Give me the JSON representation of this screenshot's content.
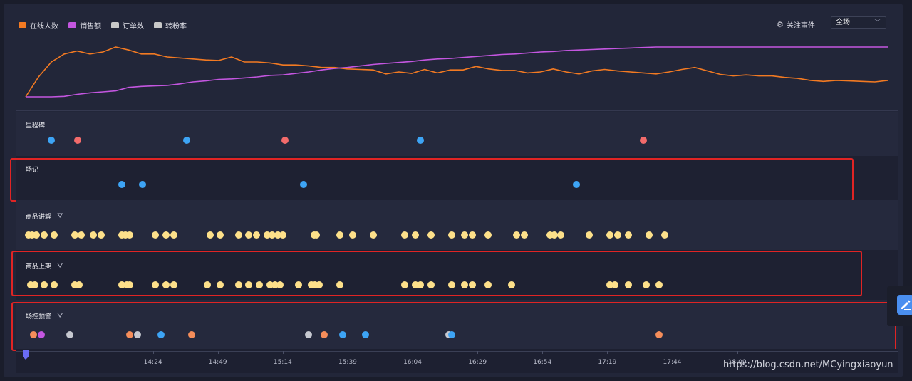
{
  "legend": [
    {
      "label": "在线人数",
      "color": "#f37a22"
    },
    {
      "label": "销售额",
      "color": "#c456e0"
    },
    {
      "label": "订单数",
      "color": "#c9c9c9"
    },
    {
      "label": "转粉率",
      "color": "#c9c9c9"
    }
  ],
  "toolbar": {
    "watch_events_label": "关注事件",
    "scope_value": "全场",
    "gear_icon": "gear-icon",
    "chevron_icon": "chevron-down-icon"
  },
  "colors": {
    "online": "#f37a22",
    "sales": "#c456e0",
    "blue": "#3da4f5",
    "red": "#f36b6b",
    "yellow": "#fde08a",
    "orange": "#f58d5a",
    "purple": "#c456e0",
    "gray": "#c6c8d0",
    "highlight": "#e02424"
  },
  "chart_data": {
    "type": "line",
    "series": [
      {
        "name": "在线人数",
        "color": "#f37a22",
        "values": [
          0.0,
          0.4,
          0.7,
          0.86,
          0.92,
          0.86,
          0.9,
          1.0,
          0.94,
          0.86,
          0.86,
          0.8,
          0.78,
          0.76,
          0.74,
          0.73,
          0.8,
          0.7,
          0.7,
          0.68,
          0.64,
          0.64,
          0.62,
          0.59,
          0.59,
          0.56,
          0.55,
          0.54,
          0.46,
          0.5,
          0.47,
          0.55,
          0.48,
          0.54,
          0.54,
          0.61,
          0.56,
          0.53,
          0.53,
          0.48,
          0.5,
          0.56,
          0.5,
          0.46,
          0.52,
          0.55,
          0.52,
          0.5,
          0.48,
          0.46,
          0.5,
          0.55,
          0.59,
          0.52,
          0.45,
          0.42,
          0.44,
          0.42,
          0.42,
          0.39,
          0.37,
          0.33,
          0.31,
          0.33,
          0.32,
          0.31,
          0.3,
          0.33
        ]
      },
      {
        "name": "销售额",
        "color": "#c456e0",
        "values": [
          0.0,
          0.0,
          0.0,
          0.01,
          0.05,
          0.08,
          0.1,
          0.12,
          0.19,
          0.21,
          0.22,
          0.23,
          0.26,
          0.3,
          0.32,
          0.35,
          0.36,
          0.38,
          0.4,
          0.43,
          0.44,
          0.47,
          0.5,
          0.54,
          0.57,
          0.59,
          0.62,
          0.65,
          0.67,
          0.69,
          0.71,
          0.74,
          0.76,
          0.77,
          0.79,
          0.81,
          0.83,
          0.85,
          0.86,
          0.88,
          0.9,
          0.91,
          0.93,
          0.94,
          0.95,
          0.96,
          0.97,
          0.98,
          0.99,
          1.0,
          1.0,
          1.0,
          1.0,
          1.0,
          1.0,
          1.0,
          1.0,
          1.0,
          1.0,
          1.0,
          1.0,
          1.0,
          1.0,
          1.0,
          1.0,
          1.0,
          1.0,
          1.0
        ]
      }
    ],
    "ylim": [
      0,
      1
    ]
  },
  "timeline": {
    "start_minutes": 815,
    "end_minutes": 1147,
    "ticks": [
      {
        "label": "14:24",
        "minutes": 864
      },
      {
        "label": "14:49",
        "minutes": 889
      },
      {
        "label": "15:14",
        "minutes": 914
      },
      {
        "label": "15:39",
        "minutes": 939
      },
      {
        "label": "16:04",
        "minutes": 964
      },
      {
        "label": "16:29",
        "minutes": 989
      },
      {
        "label": "16:54",
        "minutes": 1014
      },
      {
        "label": "17:19",
        "minutes": 1039
      },
      {
        "label": "17:44",
        "minutes": 1064
      },
      {
        "label": "18:09",
        "minutes": 1089
      }
    ]
  },
  "tracks": [
    {
      "title": "里程碑",
      "filterable": false,
      "highlighted": false,
      "events": [
        [
          825,
          "blue"
        ],
        [
          835,
          "red"
        ],
        [
          877,
          "blue"
        ],
        [
          915,
          "red"
        ],
        [
          967,
          "blue"
        ],
        [
          1053,
          "red"
        ]
      ]
    },
    {
      "title": "场记",
      "filterable": false,
      "highlighted": true,
      "events": [
        [
          852,
          "blue"
        ],
        [
          860,
          "blue"
        ],
        [
          922,
          "blue"
        ],
        [
          1027,
          "blue"
        ]
      ]
    },
    {
      "title": "商品讲解",
      "filterable": true,
      "highlighted": false,
      "events": [
        [
          816,
          "yellow"
        ],
        [
          817.5,
          "yellow"
        ],
        [
          819,
          "yellow"
        ],
        [
          822,
          "yellow"
        ],
        [
          826,
          "yellow"
        ],
        [
          834,
          "yellow"
        ],
        [
          836.5,
          "yellow"
        ],
        [
          841,
          "yellow"
        ],
        [
          844,
          "yellow"
        ],
        [
          852,
          "yellow"
        ],
        [
          853.5,
          "yellow"
        ],
        [
          855,
          "yellow"
        ],
        [
          865,
          "yellow"
        ],
        [
          869,
          "yellow"
        ],
        [
          872,
          "yellow"
        ],
        [
          886,
          "yellow"
        ],
        [
          890,
          "yellow"
        ],
        [
          897,
          "yellow"
        ],
        [
          901,
          "yellow"
        ],
        [
          904,
          "yellow"
        ],
        [
          908,
          "yellow"
        ],
        [
          910,
          "yellow"
        ],
        [
          912,
          "yellow"
        ],
        [
          914,
          "yellow"
        ],
        [
          926,
          "yellow"
        ],
        [
          927,
          "yellow"
        ],
        [
          936,
          "yellow"
        ],
        [
          941,
          "yellow"
        ],
        [
          949,
          "yellow"
        ],
        [
          961,
          "yellow"
        ],
        [
          965,
          "yellow"
        ],
        [
          971,
          "yellow"
        ],
        [
          979,
          "yellow"
        ],
        [
          984,
          "yellow"
        ],
        [
          987,
          "yellow"
        ],
        [
          993,
          "yellow"
        ],
        [
          1004,
          "yellow"
        ],
        [
          1007,
          "yellow"
        ],
        [
          1017,
          "yellow"
        ],
        [
          1018.5,
          "yellow"
        ],
        [
          1021,
          "yellow"
        ],
        [
          1032,
          "yellow"
        ],
        [
          1040,
          "yellow"
        ],
        [
          1043,
          "yellow"
        ],
        [
          1047,
          "yellow"
        ],
        [
          1055,
          "yellow"
        ],
        [
          1061,
          "yellow"
        ]
      ]
    },
    {
      "title": "商品上架",
      "filterable": true,
      "highlighted": true,
      "events": [
        [
          817,
          "yellow"
        ],
        [
          818.5,
          "yellow"
        ],
        [
          822,
          "yellow"
        ],
        [
          826,
          "yellow"
        ],
        [
          834,
          "yellow"
        ],
        [
          835.5,
          "yellow"
        ],
        [
          852,
          "yellow"
        ],
        [
          854,
          "yellow"
        ],
        [
          855,
          "yellow"
        ],
        [
          865,
          "yellow"
        ],
        [
          869,
          "yellow"
        ],
        [
          872,
          "yellow"
        ],
        [
          885,
          "yellow"
        ],
        [
          890,
          "yellow"
        ],
        [
          897,
          "yellow"
        ],
        [
          901,
          "yellow"
        ],
        [
          905,
          "yellow"
        ],
        [
          909,
          "yellow"
        ],
        [
          911,
          "yellow"
        ],
        [
          913,
          "yellow"
        ],
        [
          920,
          "yellow"
        ],
        [
          925,
          "yellow"
        ],
        [
          926.5,
          "yellow"
        ],
        [
          928,
          "yellow"
        ],
        [
          936,
          "yellow"
        ],
        [
          961,
          "yellow"
        ],
        [
          965,
          "yellow"
        ],
        [
          967,
          "yellow"
        ],
        [
          971,
          "yellow"
        ],
        [
          979,
          "yellow"
        ],
        [
          984,
          "yellow"
        ],
        [
          987,
          "yellow"
        ],
        [
          993,
          "yellow"
        ],
        [
          1002,
          "yellow"
        ],
        [
          1040,
          "yellow"
        ],
        [
          1042,
          "yellow"
        ],
        [
          1047,
          "yellow"
        ],
        [
          1054,
          "yellow"
        ],
        [
          1059,
          "yellow"
        ]
      ]
    },
    {
      "title": "场控预警",
      "filterable": true,
      "highlighted": true,
      "events": [
        [
          818,
          "orange"
        ],
        [
          821,
          "purple"
        ],
        [
          832,
          "gray"
        ],
        [
          855,
          "orange"
        ],
        [
          858,
          "gray"
        ],
        [
          867,
          "blue"
        ],
        [
          879,
          "orange"
        ],
        [
          924,
          "gray"
        ],
        [
          930,
          "orange"
        ],
        [
          937,
          "blue"
        ],
        [
          946,
          "blue"
        ],
        [
          978,
          "gray"
        ],
        [
          979,
          "blue"
        ],
        [
          1059,
          "orange"
        ]
      ]
    }
  ],
  "watermark": "https://blog.csdn.net/MCyingxiaoyun"
}
